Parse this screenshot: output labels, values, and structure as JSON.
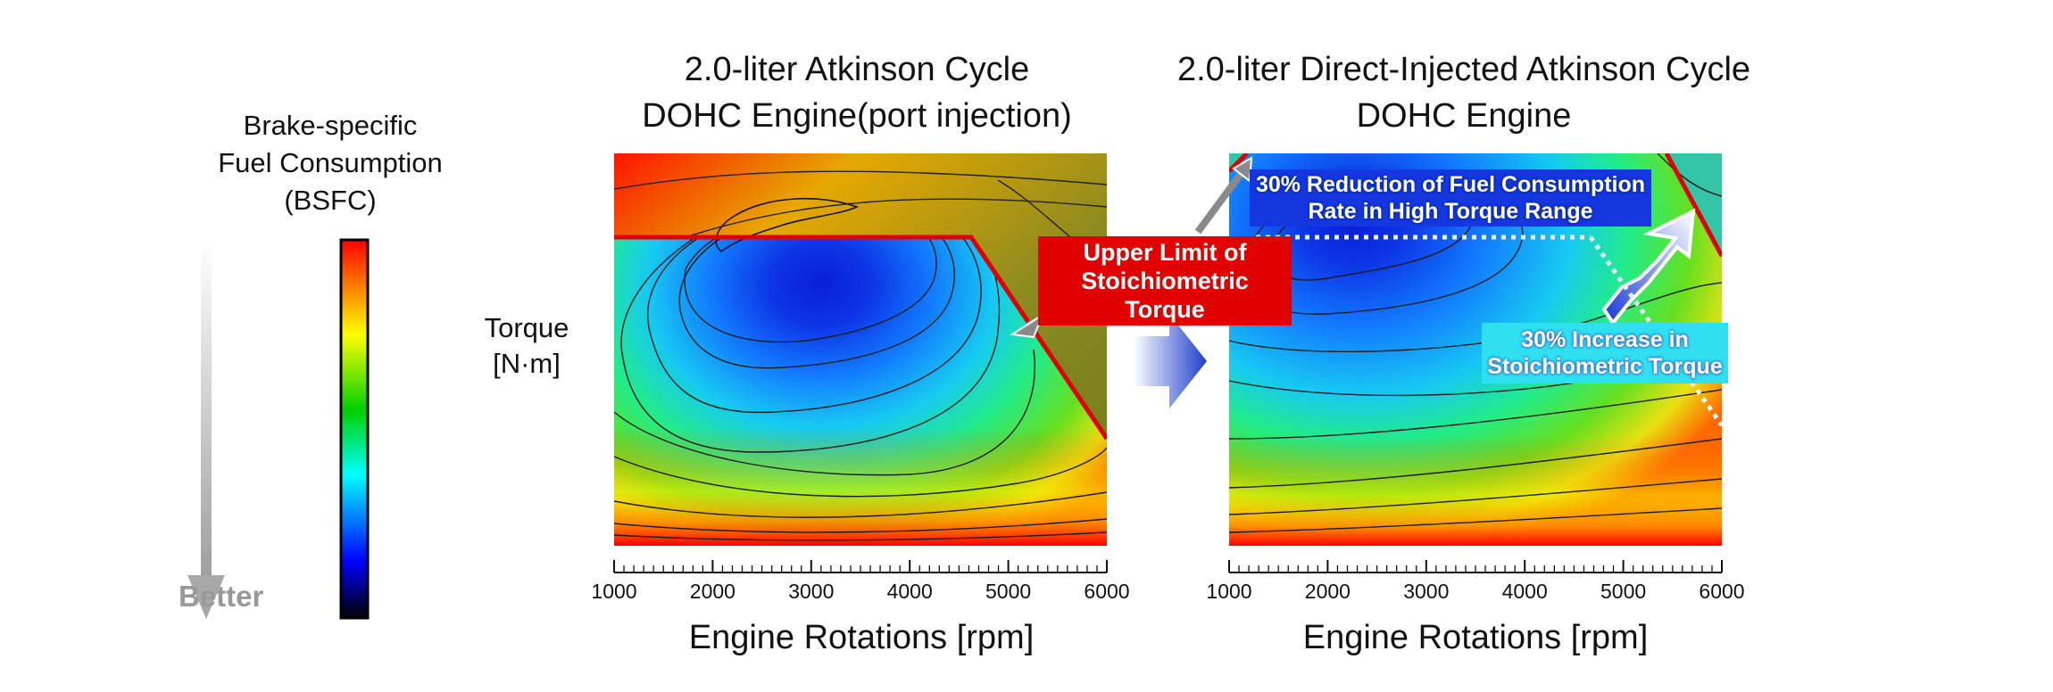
{
  "legend": {
    "title_lines": [
      "Brake-specific",
      "Fuel Consumption",
      "(BSFC)"
    ],
    "better_label": "Better",
    "colors": [
      "#ff0000",
      "#ffff00",
      "#00d000",
      "#00ffff",
      "#0000ff",
      "#000000"
    ]
  },
  "y_axis_label_lines": [
    "Torque",
    "[N·m]"
  ],
  "chart_data": [
    {
      "type": "heatmap",
      "title_lines": [
        "2.0-liter Atkinson Cycle",
        "DOHC Engine(port injection)"
      ],
      "xlabel": "Engine Rotations [rpm]",
      "ylabel": "Torque [N·m]",
      "xlim": [
        1000,
        6000
      ],
      "x_ticks": [
        1000,
        2000,
        3000,
        4000,
        5000,
        6000
      ],
      "stoich_limit_label_lines": [
        "Upper Limit of",
        "Stoichiometric Torque"
      ]
    },
    {
      "type": "heatmap",
      "title_lines": [
        "2.0-liter Direct-Injected Atkinson Cycle",
        "DOHC Engine"
      ],
      "xlabel": "Engine Rotations [rpm]",
      "ylabel": "Torque [N·m]",
      "xlim": [
        1000,
        6000
      ],
      "x_ticks": [
        1000,
        2000,
        3000,
        4000,
        5000,
        6000
      ],
      "annotations": {
        "reduction_lines": [
          "30% Reduction of Fuel Consumption",
          "Rate in High Torque Range"
        ],
        "increase_lines": [
          "30% Increase in",
          "Stoichiometric Torque"
        ]
      }
    }
  ]
}
